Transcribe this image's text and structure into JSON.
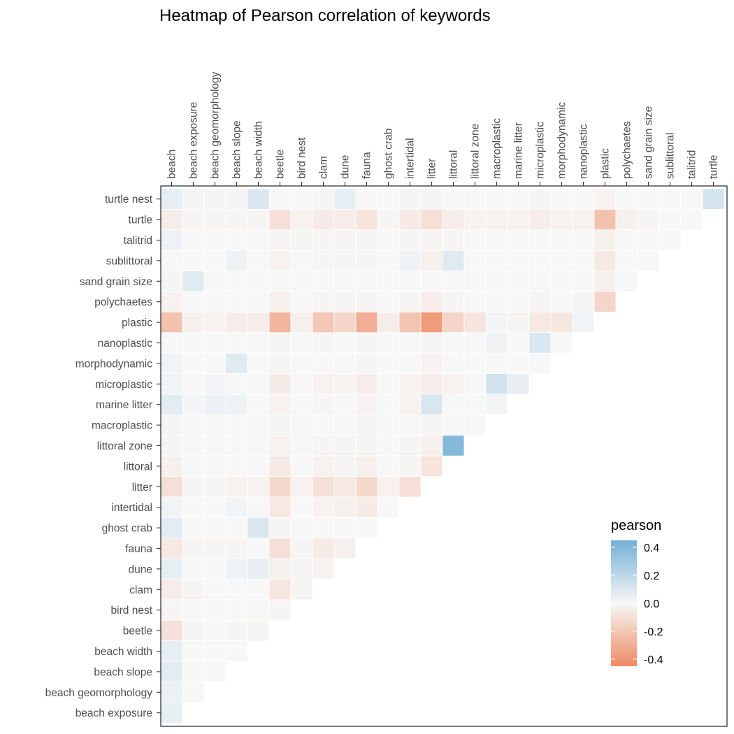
{
  "chart_data": {
    "type": "heatmap",
    "title": "Heatmap of Pearson correlation of keywords",
    "x_categories": [
      "beach",
      "beach exposure",
      "beach geomorphology",
      "beach slope",
      "beach width",
      "beetle",
      "bird nest",
      "clam",
      "dune",
      "fauna",
      "ghost crab",
      "intertidal",
      "litter",
      "littoral",
      "littoral zone",
      "macroplastic",
      "marine litter",
      "microplastic",
      "morphodynamic",
      "nanoplastic",
      "plastic",
      "polychaetes",
      "sand grain size",
      "sublittoral",
      "talitrid",
      "turtle"
    ],
    "y_categories": [
      "turtle nest",
      "turtle",
      "talitrid",
      "sublittoral",
      "sand grain size",
      "polychaetes",
      "plastic",
      "nanoplastic",
      "morphodynamic",
      "microplastic",
      "marine litter",
      "macroplastic",
      "littoral zone",
      "littoral",
      "litter",
      "intertidal",
      "ghost crab",
      "fauna",
      "dune",
      "clam",
      "bird nest",
      "beetle",
      "beach width",
      "beach slope",
      "beach geomorphology",
      "beach exposure"
    ],
    "values": [
      [
        0.06,
        0.01,
        0.01,
        0.01,
        0.1,
        0.0,
        0.0,
        -0.01,
        0.06,
        0.0,
        0.0,
        -0.01,
        -0.01,
        0.0,
        0.0,
        0.0,
        0.0,
        0.01,
        0.0,
        0.0,
        -0.02,
        0.0,
        0.0,
        0.0,
        0.0,
        0.12
      ],
      [
        -0.04,
        -0.01,
        -0.01,
        -0.01,
        -0.01,
        -0.09,
        -0.02,
        -0.05,
        -0.04,
        -0.08,
        -0.01,
        -0.05,
        -0.1,
        -0.04,
        -0.02,
        -0.02,
        -0.02,
        -0.04,
        -0.02,
        -0.02,
        -0.22,
        -0.03,
        -0.01,
        0.0,
        0.0
      ],
      [
        0.03,
        0.0,
        0.0,
        0.0,
        0.0,
        -0.01,
        -0.01,
        -0.01,
        -0.01,
        -0.01,
        0.0,
        -0.01,
        -0.01,
        -0.01,
        0.0,
        0.0,
        0.0,
        0.0,
        0.0,
        0.0,
        -0.03,
        0.0,
        0.0,
        0.0
      ],
      [
        0.0,
        0.0,
        0.0,
        0.03,
        0.0,
        -0.02,
        0.0,
        -0.01,
        -0.01,
        -0.01,
        0.0,
        0.03,
        -0.03,
        0.08,
        0.0,
        0.0,
        0.0,
        0.0,
        0.0,
        0.0,
        -0.06,
        0.0,
        0.0
      ],
      [
        0.01,
        0.08,
        0.0,
        0.0,
        0.0,
        0.0,
        0.0,
        0.0,
        0.0,
        0.0,
        0.0,
        0.0,
        0.0,
        0.0,
        0.0,
        0.0,
        0.0,
        0.0,
        0.0,
        0.0,
        -0.03,
        0.0
      ],
      [
        -0.02,
        0.0,
        0.0,
        0.0,
        0.0,
        -0.03,
        0.0,
        -0.01,
        -0.01,
        -0.01,
        0.0,
        -0.01,
        -0.04,
        -0.01,
        0.0,
        0.0,
        0.0,
        -0.01,
        0.0,
        -0.01,
        -0.14
      ],
      [
        -0.22,
        -0.03,
        -0.02,
        -0.04,
        -0.04,
        -0.27,
        -0.03,
        -0.2,
        -0.14,
        -0.3,
        -0.04,
        -0.21,
        -0.38,
        -0.14,
        -0.08,
        0.01,
        -0.01,
        -0.06,
        -0.07,
        0.02
      ],
      [
        0.0,
        0.0,
        0.0,
        0.0,
        0.0,
        -0.01,
        0.0,
        -0.01,
        0.0,
        -0.01,
        0.0,
        0.0,
        -0.01,
        0.0,
        0.0,
        0.03,
        0.0,
        0.11,
        0.0
      ],
      [
        0.02,
        0.0,
        0.0,
        0.08,
        0.0,
        -0.01,
        0.0,
        0.0,
        0.0,
        -0.01,
        0.0,
        0.0,
        -0.02,
        0.0,
        0.0,
        0.0,
        0.0,
        0.0
      ],
      [
        0.02,
        0.0,
        0.01,
        0.0,
        0.0,
        -0.05,
        0.0,
        -0.02,
        -0.01,
        -0.04,
        0.0,
        -0.02,
        -0.04,
        -0.02,
        0.0,
        0.13,
        0.05
      ],
      [
        0.07,
        0.01,
        0.04,
        0.03,
        0.0,
        -0.02,
        0.0,
        -0.01,
        0.0,
        -0.02,
        0.0,
        -0.02,
        0.11,
        0.0,
        0.0,
        0.02
      ],
      [
        0.01,
        0.0,
        0.0,
        0.0,
        0.0,
        -0.01,
        0.0,
        0.0,
        0.0,
        -0.01,
        0.0,
        0.0,
        -0.01,
        0.0,
        0.0
      ],
      [
        0.01,
        0.0,
        0.0,
        0.0,
        0.0,
        -0.02,
        0.0,
        -0.01,
        -0.01,
        -0.01,
        0.0,
        -0.01,
        -0.03,
        0.39
      ],
      [
        -0.03,
        0.0,
        0.0,
        0.0,
        0.0,
        -0.05,
        0.0,
        -0.02,
        -0.01,
        -0.03,
        0.0,
        -0.01,
        -0.08
      ],
      [
        -0.1,
        -0.01,
        -0.01,
        -0.02,
        -0.02,
        -0.13,
        -0.02,
        -0.1,
        -0.06,
        -0.13,
        -0.02,
        -0.1
      ],
      [
        0.02,
        0.0,
        0.0,
        0.02,
        0.0,
        -0.06,
        0.0,
        -0.02,
        -0.03,
        -0.05,
        0.0
      ],
      [
        0.07,
        0.0,
        0.0,
        0.0,
        0.1,
        -0.01,
        0.0,
        0.0,
        0.0,
        0.0
      ],
      [
        -0.06,
        -0.01,
        -0.01,
        -0.01,
        0.0,
        -0.09,
        -0.01,
        -0.05,
        -0.03
      ],
      [
        0.06,
        0.0,
        0.0,
        0.03,
        0.05,
        -0.03,
        -0.01,
        -0.02
      ],
      [
        -0.04,
        -0.01,
        0.0,
        0.0,
        0.0,
        -0.07,
        -0.01
      ],
      [
        -0.01,
        0.0,
        0.0,
        0.0,
        0.0,
        -0.01
      ],
      [
        -0.09,
        -0.01,
        0.0,
        -0.01,
        -0.01
      ],
      [
        0.06,
        0.0,
        0.0,
        0.0
      ],
      [
        0.07,
        0.0,
        0.0
      ],
      [
        0.04,
        0.0
      ],
      [
        0.05
      ]
    ],
    "legend": {
      "title": "pearson",
      "placement": "inside-bottom-right",
      "ticks": [
        0.4,
        0.2,
        0.0,
        -0.2,
        -0.4
      ],
      "tick_labels": [
        "0.4",
        "0.2",
        "0.0",
        "-0.2",
        "-0.4"
      ],
      "range": [
        -0.45,
        0.45
      ]
    },
    "colors": {
      "positive": "#74b0d6",
      "zero": "#f7f7f7",
      "negative": "#ef8a62"
    },
    "grid": false
  }
}
